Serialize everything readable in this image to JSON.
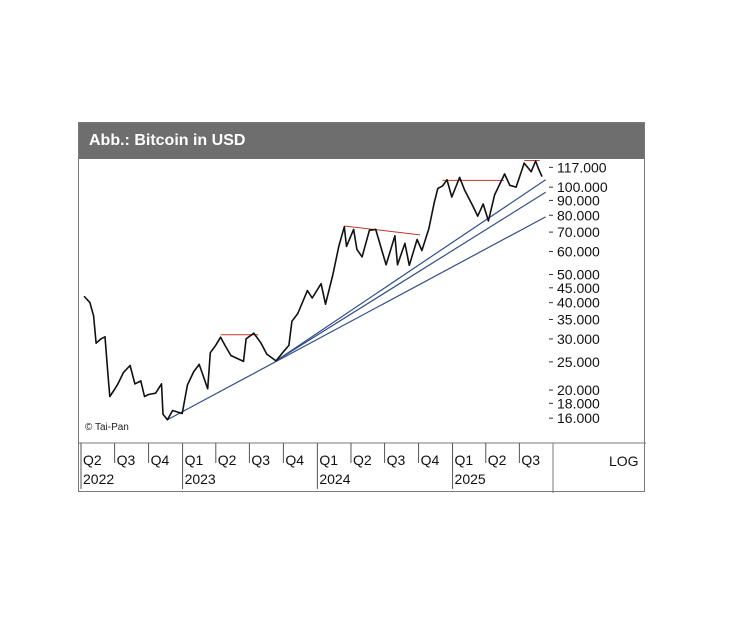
{
  "chart_data": {
    "type": "line",
    "title": "Abb.: Bitcoin in USD",
    "credit": "© Tai-Pan",
    "scale_label": "LOG",
    "y_scale": "log",
    "ylim": [
      14000,
      125000
    ],
    "y_ticks": [
      {
        "value": 117000,
        "label": "117.000"
      },
      {
        "value": 100000,
        "label": "100.000"
      },
      {
        "value": 90000,
        "label": "90.000"
      },
      {
        "value": 80000,
        "label": "80.000"
      },
      {
        "value": 70000,
        "label": "70.000"
      },
      {
        "value": 60000,
        "label": "60.000"
      },
      {
        "value": 50000,
        "label": "50.000"
      },
      {
        "value": 45000,
        "label": "45.000"
      },
      {
        "value": 40000,
        "label": "40.000"
      },
      {
        "value": 35000,
        "label": "35.000"
      },
      {
        "value": 30000,
        "label": "30.000"
      },
      {
        "value": 25000,
        "label": "25.000"
      },
      {
        "value": 20000,
        "label": "20.000"
      },
      {
        "value": 18000,
        "label": "18.000"
      },
      {
        "value": 16000,
        "label": "16.000"
      }
    ],
    "x_range": [
      "2022-04-01",
      "2025-09-30"
    ],
    "x_quarters": [
      {
        "label": "Q2",
        "date": "2022-04-01"
      },
      {
        "label": "Q3",
        "date": "2022-07-01"
      },
      {
        "label": "Q4",
        "date": "2022-10-01"
      },
      {
        "label": "Q1",
        "date": "2023-01-01"
      },
      {
        "label": "Q2",
        "date": "2023-04-01"
      },
      {
        "label": "Q3",
        "date": "2023-07-01"
      },
      {
        "label": "Q4",
        "date": "2023-10-01"
      },
      {
        "label": "Q1",
        "date": "2024-01-01"
      },
      {
        "label": "Q2",
        "date": "2024-04-01"
      },
      {
        "label": "Q3",
        "date": "2024-07-01"
      },
      {
        "label": "Q4",
        "date": "2024-10-01"
      },
      {
        "label": "Q1",
        "date": "2025-01-01"
      },
      {
        "label": "Q2",
        "date": "2025-04-01"
      },
      {
        "label": "Q3",
        "date": "2025-07-01"
      }
    ],
    "x_years": [
      {
        "label": "2022",
        "date": "2022-04-01"
      },
      {
        "label": "2023",
        "date": "2023-01-01"
      },
      {
        "label": "2024",
        "date": "2024-01-01"
      },
      {
        "label": "2025",
        "date": "2025-01-01"
      }
    ],
    "series": [
      {
        "color": "#111111",
        "points": [
          [
            "2022-04-10",
            42000
          ],
          [
            "2022-04-25",
            40000
          ],
          [
            "2022-05-05",
            36000
          ],
          [
            "2022-05-12",
            29000
          ],
          [
            "2022-05-25",
            30000
          ],
          [
            "2022-06-05",
            30500
          ],
          [
            "2022-06-13",
            22500
          ],
          [
            "2022-06-18",
            19000
          ],
          [
            "2022-06-30",
            20000
          ],
          [
            "2022-07-10",
            21000
          ],
          [
            "2022-07-25",
            23000
          ],
          [
            "2022-08-12",
            24300
          ],
          [
            "2022-08-25",
            21000
          ],
          [
            "2022-09-10",
            21500
          ],
          [
            "2022-09-20",
            19000
          ],
          [
            "2022-10-01",
            19300
          ],
          [
            "2022-10-20",
            19500
          ],
          [
            "2022-11-05",
            21000
          ],
          [
            "2022-11-09",
            16500
          ],
          [
            "2022-11-21",
            15800
          ],
          [
            "2022-12-05",
            17000
          ],
          [
            "2022-12-31",
            16600
          ],
          [
            "2023-01-14",
            20800
          ],
          [
            "2023-01-31",
            23100
          ],
          [
            "2023-02-15",
            24500
          ],
          [
            "2023-03-10",
            20200
          ],
          [
            "2023-03-17",
            26900
          ],
          [
            "2023-03-31",
            28400
          ],
          [
            "2023-04-14",
            30400
          ],
          [
            "2023-04-26",
            28500
          ],
          [
            "2023-05-12",
            26300
          ],
          [
            "2023-06-15",
            25100
          ],
          [
            "2023-06-22",
            30000
          ],
          [
            "2023-07-13",
            31400
          ],
          [
            "2023-07-31",
            29200
          ],
          [
            "2023-08-17",
            26600
          ],
          [
            "2023-09-11",
            25200
          ],
          [
            "2023-09-30",
            27000
          ],
          [
            "2023-10-16",
            28500
          ],
          [
            "2023-10-24",
            34500
          ],
          [
            "2023-11-09",
            36700
          ],
          [
            "2023-12-05",
            44000
          ],
          [
            "2023-12-18",
            41500
          ],
          [
            "2024-01-11",
            46500
          ],
          [
            "2024-01-23",
            39500
          ],
          [
            "2024-02-12",
            50000
          ],
          [
            "2024-02-28",
            62500
          ],
          [
            "2024-03-14",
            73000
          ],
          [
            "2024-03-20",
            62500
          ],
          [
            "2024-04-08",
            71500
          ],
          [
            "2024-04-17",
            61000
          ],
          [
            "2024-05-01",
            57500
          ],
          [
            "2024-05-21",
            71000
          ],
          [
            "2024-06-07",
            71500
          ],
          [
            "2024-06-24",
            60300
          ],
          [
            "2024-07-05",
            54000
          ],
          [
            "2024-07-29",
            68000
          ],
          [
            "2024-08-05",
            54000
          ],
          [
            "2024-08-25",
            64000
          ],
          [
            "2024-09-06",
            53800
          ],
          [
            "2024-09-27",
            66000
          ],
          [
            "2024-10-10",
            60500
          ],
          [
            "2024-10-29",
            72000
          ],
          [
            "2024-11-12",
            88000
          ],
          [
            "2024-11-22",
            99000
          ],
          [
            "2024-12-05",
            101000
          ],
          [
            "2024-12-17",
            106000
          ],
          [
            "2024-12-30",
            92500
          ],
          [
            "2025-01-20",
            108000
          ],
          [
            "2025-02-03",
            97500
          ],
          [
            "2025-02-25",
            86000
          ],
          [
            "2025-03-10",
            79500
          ],
          [
            "2025-03-25",
            87500
          ],
          [
            "2025-04-08",
            76500
          ],
          [
            "2025-04-25",
            94000
          ],
          [
            "2025-05-22",
            111000
          ],
          [
            "2025-06-05",
            101500
          ],
          [
            "2025-06-22",
            100000
          ],
          [
            "2025-07-14",
            121000
          ],
          [
            "2025-08-02",
            113000
          ],
          [
            "2025-08-14",
            123000
          ],
          [
            "2025-08-22",
            115500
          ],
          [
            "2025-08-31",
            109000
          ]
        ]
      }
    ],
    "support_lines": [
      {
        "color": "#2f4f8a",
        "from": [
          "2022-11-21",
          15800
        ],
        "to": [
          "2025-09-10",
          79000
        ]
      },
      {
        "color": "#2f4f8a",
        "from": [
          "2023-09-11",
          25200
        ],
        "to": [
          "2025-09-10",
          96000
        ]
      },
      {
        "color": "#2f4f8a",
        "from": [
          "2023-09-11",
          25200
        ],
        "to": [
          "2025-09-10",
          106000
        ]
      }
    ],
    "resistance_lines": [
      {
        "color": "#c0392b",
        "from": [
          "2023-04-14",
          31000
        ],
        "to": [
          "2023-07-25",
          31000
        ]
      },
      {
        "color": "#c0392b",
        "from": [
          "2024-03-14",
          73500
        ],
        "to": [
          "2024-10-05",
          68500
        ]
      },
      {
        "color": "#c0392b",
        "from": [
          "2024-12-05",
          105500
        ],
        "to": [
          "2025-05-20",
          105500
        ]
      },
      {
        "color": "#c0392b",
        "from": [
          "2025-07-14",
          123500
        ],
        "to": [
          "2025-08-25",
          123500
        ]
      }
    ]
  }
}
